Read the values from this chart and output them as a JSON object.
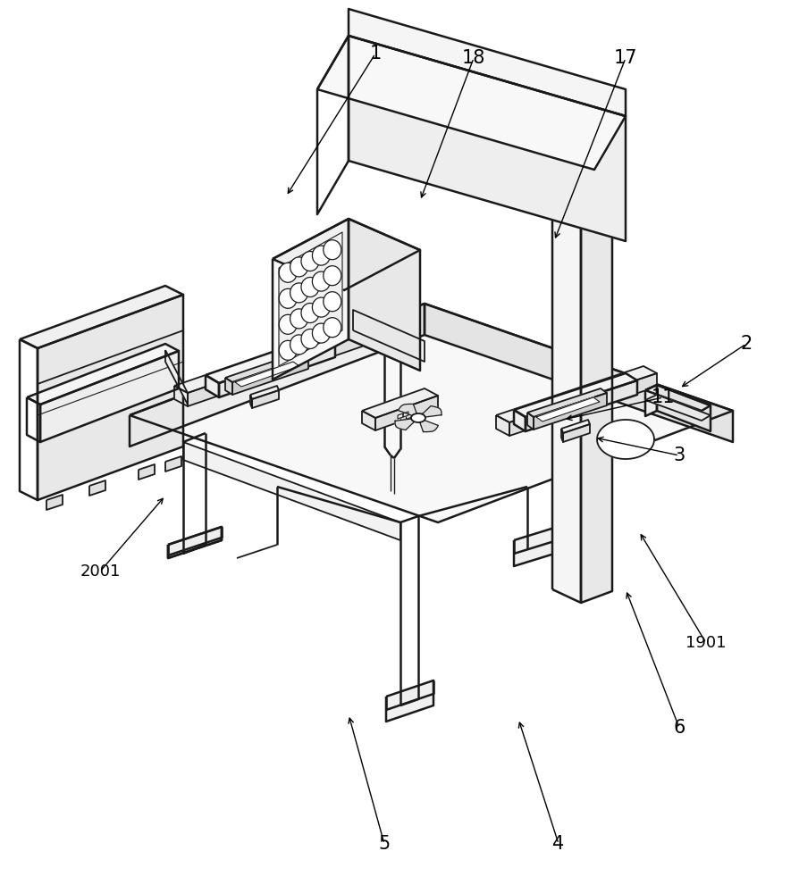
{
  "bg_color": "#ffffff",
  "lc": "#1a1a1a",
  "lw": 1.3,
  "lw2": 1.8,
  "annotations": [
    [
      "1",
      420,
      940,
      320,
      780
    ],
    [
      "2",
      835,
      615,
      760,
      565
    ],
    [
      "3",
      760,
      490,
      665,
      510
    ],
    [
      "4",
      625,
      55,
      580,
      195
    ],
    [
      "5",
      430,
      55,
      390,
      200
    ],
    [
      "6",
      760,
      185,
      700,
      340
    ],
    [
      "11",
      742,
      555,
      630,
      530
    ],
    [
      "17",
      700,
      935,
      620,
      730
    ],
    [
      "18",
      530,
      935,
      470,
      775
    ],
    [
      "1901",
      790,
      280,
      715,
      405
    ],
    [
      "2001",
      112,
      360,
      185,
      445
    ]
  ]
}
